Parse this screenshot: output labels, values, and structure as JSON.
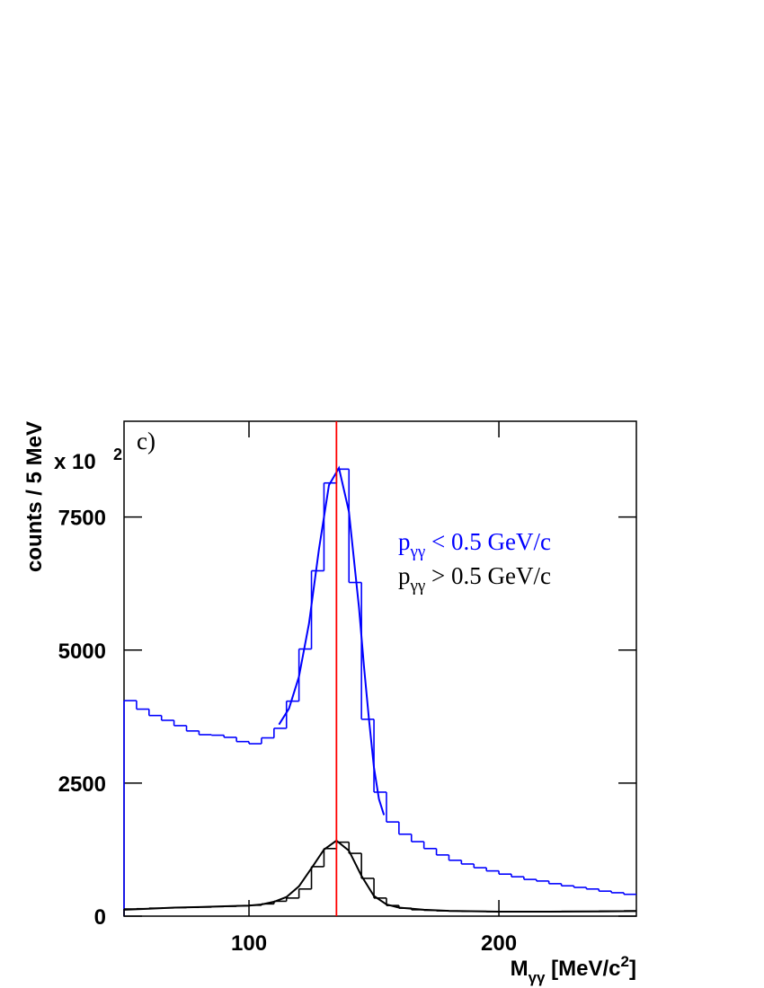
{
  "chart_data": {
    "type": "histogram",
    "annotation": "c)",
    "x_label": "Mγγ [MeV/c2]",
    "y_label": "counts / 5 MeV",
    "y_multiplier": "x 10",
    "y_multiplier_exponent": "2",
    "xlim": [
      50,
      255
    ],
    "ylim": [
      0,
      9300
    ],
    "xticks": [
      100,
      200
    ],
    "yticks": [
      0,
      2500,
      5000,
      7500
    ],
    "bins": [
      50,
      55,
      60,
      65,
      70,
      75,
      80,
      85,
      90,
      95,
      100,
      105,
      110,
      115,
      120,
      125,
      130,
      135,
      140,
      145,
      150,
      155,
      160,
      165,
      170,
      175,
      180,
      185,
      190,
      195,
      200,
      205,
      210,
      215,
      220,
      225,
      230,
      235,
      240,
      245,
      250,
      255
    ],
    "reference_line": {
      "x": 135,
      "color": "#ff0000"
    },
    "series": [
      {
        "name": "pγγ < 0.5 GeV/c",
        "color": "#0000ff",
        "values": [
          4050,
          3890,
          3770,
          3680,
          3580,
          3480,
          3410,
          3400,
          3360,
          3280,
          3240,
          3350,
          3530,
          4040,
          5020,
          6490,
          8140,
          8400,
          6270,
          3700,
          2330,
          1770,
          1540,
          1400,
          1270,
          1150,
          1050,
          980,
          910,
          850,
          790,
          740,
          690,
          660,
          610,
          570,
          540,
          510,
          470,
          440,
          410
        ],
        "fit": {
          "x": [
            112,
            116,
            120,
            124,
            128,
            132,
            136,
            140,
            144,
            146,
            148,
            150,
            152,
            154
          ],
          "values": [
            3600,
            3900,
            4500,
            5500,
            6900,
            8100,
            8420,
            7600,
            5800,
            4700,
            3700,
            2800,
            2200,
            1900
          ]
        }
      },
      {
        "name": "pγγ > 0.5 GeV/c",
        "color": "#000000",
        "values": [
          135,
          140,
          150,
          155,
          160,
          165,
          170,
          180,
          185,
          195,
          205,
          230,
          280,
          340,
          510,
          930,
          1270,
          1390,
          1180,
          710,
          340,
          200,
          150,
          120,
          110,
          100,
          95,
          90,
          90,
          85,
          85,
          85,
          85,
          85,
          85,
          90,
          90,
          90,
          95,
          95,
          100
        ],
        "fit": {
          "x": [
            50,
            60,
            70,
            80,
            90,
            100,
            105,
            110,
            115,
            120,
            125,
            130,
            135,
            140,
            145,
            150,
            155,
            160,
            170,
            180,
            200,
            220,
            240,
            255
          ],
          "values": [
            120,
            140,
            160,
            170,
            185,
            200,
            220,
            270,
            360,
            560,
            900,
            1250,
            1420,
            1230,
            760,
            380,
            220,
            160,
            120,
            100,
            85,
            85,
            90,
            95
          ]
        }
      }
    ]
  }
}
